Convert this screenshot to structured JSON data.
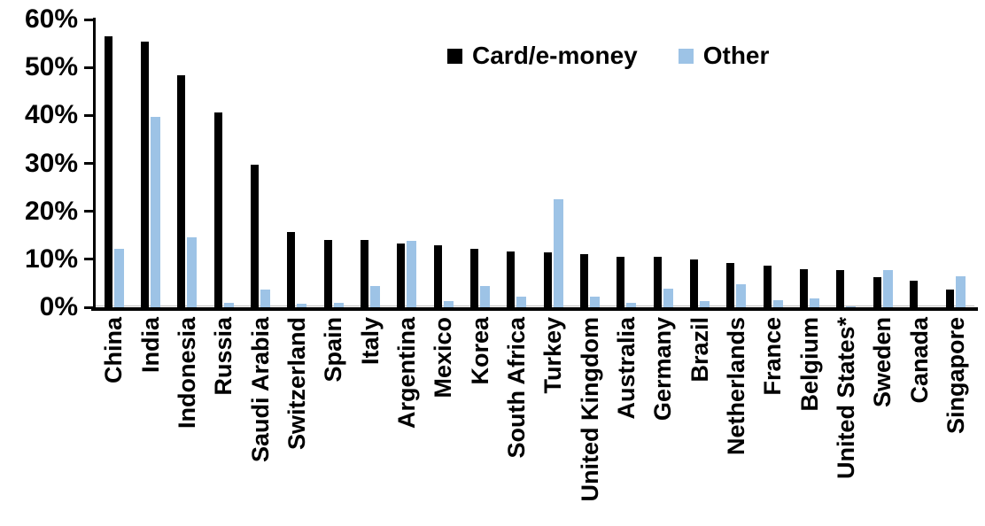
{
  "chart_data": {
    "type": "bar",
    "title": "",
    "categories": [
      "China",
      "India",
      "Indonesia",
      "Russia",
      "Saudi Arabia",
      "Switzerland",
      "Spain",
      "Italy",
      "Argentina",
      "Mexico",
      "Korea",
      "South Africa",
      "Turkey",
      "United Kingdom",
      "Australia",
      "Germany",
      "Brazil",
      "Netherlands",
      "France",
      "Belgium",
      "United States*",
      "Sweden",
      "Canada",
      "Singapore"
    ],
    "series": [
      {
        "name": "Card/e-money",
        "color": "#000000",
        "values": [
          56.5,
          55.3,
          48.4,
          40.6,
          29.8,
          15.6,
          14.1,
          14.0,
          13.3,
          12.9,
          12.2,
          11.6,
          11.4,
          11.0,
          10.6,
          10.5,
          9.9,
          9.3,
          8.6,
          8.0,
          7.7,
          6.3,
          5.6,
          3.7
        ]
      },
      {
        "name": "Other",
        "color": "#9DC3E6",
        "values": [
          12.2,
          39.7,
          14.5,
          0.9,
          3.6,
          0.8,
          0.9,
          4.4,
          13.8,
          1.3,
          4.4,
          2.3,
          22.5,
          2.3,
          0.9,
          3.9,
          1.2,
          4.8,
          1.4,
          1.9,
          0.2,
          7.8,
          0,
          6.5
        ]
      }
    ],
    "xlabel": "",
    "ylabel": "",
    "ylim": [
      0,
      60
    ],
    "ytick_step": 10,
    "yticks": [
      "0%",
      "10%",
      "20%",
      "30%",
      "40%",
      "50%",
      "60%"
    ],
    "grid": false,
    "legend_position": "top-center"
  },
  "colors": {
    "background": "#FFFFFF",
    "axis": "#000000",
    "series_card": "#000000",
    "series_other": "#9DC3E6",
    "baseline_hairline": "#BFBFBF"
  }
}
